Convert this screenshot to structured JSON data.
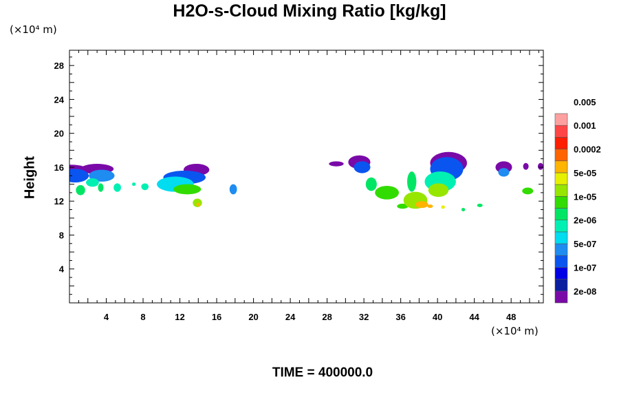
{
  "chart_data": {
    "type": "heatmap",
    "title": "H2O-s-Cloud Mixing Ratio [kg/kg]",
    "xlabel": "",
    "ylabel": "Height",
    "x_unit": "(×10⁴ m)",
    "y_unit": "(×10⁴ m)",
    "xlim": [
      0,
      51.5
    ],
    "ylim": [
      0,
      29.8
    ],
    "x_ticks": [
      4,
      8,
      12,
      16,
      20,
      24,
      28,
      32,
      36,
      40,
      44,
      48
    ],
    "y_ticks": [
      4,
      8,
      12,
      16,
      20,
      24,
      28
    ],
    "legend_position": "right",
    "colorbar": {
      "colors": [
        "#7a0aa8",
        "#0a1ea0",
        "#0000e6",
        "#0a55f0",
        "#1e8cf0",
        "#00dcf0",
        "#00f0b4",
        "#00e664",
        "#32dc00",
        "#96e600",
        "#e6f000",
        "#ffb400",
        "#ff6400",
        "#ff1e00",
        "#ff4646",
        "#ffa0a0"
      ],
      "labels": [
        "2e-08",
        "1e-07",
        "5e-07",
        "2e-06",
        "1e-05",
        "5e-05",
        "0.0002",
        "0.001",
        "0.005"
      ]
    },
    "regions": [
      {
        "x": 0.1,
        "y": 15.6,
        "rx": 2.0,
        "ry": 0.7,
        "level": 0
      },
      {
        "x": 0.6,
        "y": 15.0,
        "rx": 1.5,
        "ry": 0.8,
        "level": 3
      },
      {
        "x": 3.0,
        "y": 15.8,
        "rx": 1.8,
        "ry": 0.6,
        "level": 0
      },
      {
        "x": 3.5,
        "y": 15.0,
        "rx": 1.4,
        "ry": 0.7,
        "level": 4
      },
      {
        "x": 1.2,
        "y": 13.3,
        "rx": 0.5,
        "ry": 0.6,
        "level": 7
      },
      {
        "x": 2.5,
        "y": 14.2,
        "rx": 0.7,
        "ry": 0.5,
        "level": 6
      },
      {
        "x": 3.4,
        "y": 13.6,
        "rx": 0.3,
        "ry": 0.5,
        "level": 7
      },
      {
        "x": 5.2,
        "y": 13.6,
        "rx": 0.4,
        "ry": 0.5,
        "level": 6
      },
      {
        "x": 7.0,
        "y": 14.0,
        "rx": 0.2,
        "ry": 0.2,
        "level": 6
      },
      {
        "x": 8.2,
        "y": 13.7,
        "rx": 0.4,
        "ry": 0.4,
        "level": 6
      },
      {
        "x": 13.8,
        "y": 15.7,
        "rx": 1.4,
        "ry": 0.7,
        "level": 0
      },
      {
        "x": 12.5,
        "y": 14.8,
        "rx": 2.3,
        "ry": 0.8,
        "level": 3
      },
      {
        "x": 11.5,
        "y": 14.0,
        "rx": 2.0,
        "ry": 0.9,
        "level": 5
      },
      {
        "x": 12.8,
        "y": 13.4,
        "rx": 1.5,
        "ry": 0.6,
        "level": 8
      },
      {
        "x": 13.9,
        "y": 11.8,
        "rx": 0.5,
        "ry": 0.5,
        "level": 9
      },
      {
        "x": 14.0,
        "y": 11.6,
        "rx": 0.2,
        "ry": 0.2,
        "level": 11
      },
      {
        "x": 17.8,
        "y": 13.4,
        "rx": 0.4,
        "ry": 0.6,
        "level": 4
      },
      {
        "x": 29.0,
        "y": 16.4,
        "rx": 0.8,
        "ry": 0.3,
        "level": 0
      },
      {
        "x": 31.5,
        "y": 16.6,
        "rx": 1.2,
        "ry": 0.8,
        "level": 0
      },
      {
        "x": 31.8,
        "y": 16.0,
        "rx": 0.9,
        "ry": 0.7,
        "level": 3
      },
      {
        "x": 32.8,
        "y": 14.0,
        "rx": 0.6,
        "ry": 0.8,
        "level": 7
      },
      {
        "x": 34.5,
        "y": 13.0,
        "rx": 1.3,
        "ry": 0.8,
        "level": 8
      },
      {
        "x": 37.2,
        "y": 14.3,
        "rx": 0.5,
        "ry": 1.2,
        "level": 7
      },
      {
        "x": 37.6,
        "y": 12.1,
        "rx": 1.3,
        "ry": 1.0,
        "level": 9
      },
      {
        "x": 38.3,
        "y": 11.6,
        "rx": 0.7,
        "ry": 0.4,
        "level": 11
      },
      {
        "x": 36.2,
        "y": 11.4,
        "rx": 0.6,
        "ry": 0.3,
        "level": 8
      },
      {
        "x": 39.2,
        "y": 11.4,
        "rx": 0.3,
        "ry": 0.2,
        "level": 11
      },
      {
        "x": 41.2,
        "y": 16.5,
        "rx": 2.0,
        "ry": 1.3,
        "level": 0
      },
      {
        "x": 41.0,
        "y": 15.8,
        "rx": 1.8,
        "ry": 1.4,
        "level": 3
      },
      {
        "x": 40.3,
        "y": 14.3,
        "rx": 1.7,
        "ry": 1.2,
        "level": 6
      },
      {
        "x": 40.1,
        "y": 13.3,
        "rx": 1.1,
        "ry": 0.8,
        "level": 9
      },
      {
        "x": 40.6,
        "y": 11.3,
        "rx": 0.2,
        "ry": 0.2,
        "level": 10
      },
      {
        "x": 42.8,
        "y": 11.0,
        "rx": 0.2,
        "ry": 0.2,
        "level": 7
      },
      {
        "x": 44.6,
        "y": 11.5,
        "rx": 0.3,
        "ry": 0.2,
        "level": 7
      },
      {
        "x": 47.2,
        "y": 16.0,
        "rx": 0.9,
        "ry": 0.7,
        "level": 0
      },
      {
        "x": 47.2,
        "y": 15.4,
        "rx": 0.6,
        "ry": 0.5,
        "level": 4
      },
      {
        "x": 49.6,
        "y": 16.1,
        "rx": 0.3,
        "ry": 0.4,
        "level": 0
      },
      {
        "x": 49.8,
        "y": 13.2,
        "rx": 0.6,
        "ry": 0.4,
        "level": 8
      },
      {
        "x": 51.2,
        "y": 16.1,
        "rx": 0.3,
        "ry": 0.4,
        "level": 0
      }
    ]
  },
  "units": {
    "y": "(×10⁴ m)",
    "x": "(×10⁴ m)"
  },
  "footer": "TIME = 400000.0"
}
